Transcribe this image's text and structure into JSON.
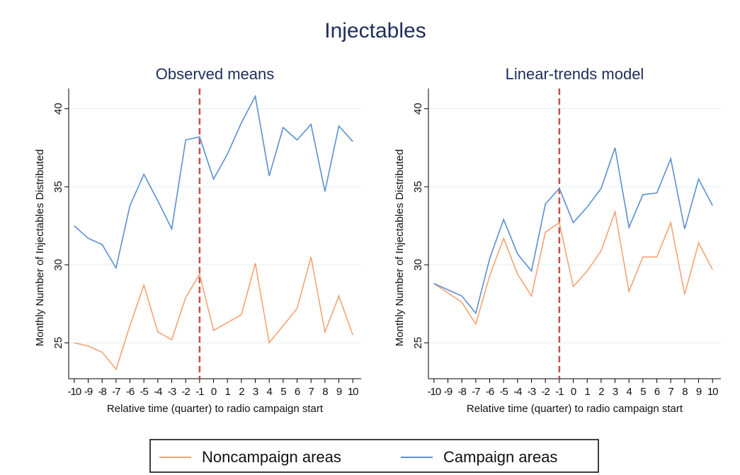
{
  "title": "Injectables",
  "chart_data": [
    {
      "type": "line",
      "title": "Observed means",
      "xlabel": "Relative time (quarter) to radio campaign start",
      "ylabel": "Monthly Number of Injectables Distributed",
      "x": [
        -10,
        -9,
        -8,
        -7,
        -6,
        -5,
        -4,
        -3,
        -2,
        -1,
        0,
        1,
        2,
        3,
        4,
        5,
        6,
        7,
        8,
        9,
        10
      ],
      "series": [
        {
          "name": "Noncampaign areas",
          "color": "#f4a373",
          "values": [
            25.0,
            24.8,
            24.4,
            23.3,
            26.1,
            28.7,
            25.7,
            25.2,
            27.9,
            29.4,
            25.8,
            26.3,
            26.8,
            30.1,
            25.0,
            26.1,
            27.2,
            30.5,
            25.7,
            28.0,
            25.5
          ]
        },
        {
          "name": "Campaign areas",
          "color": "#5b8fd0",
          "values": [
            32.5,
            31.7,
            31.3,
            29.8,
            33.8,
            35.8,
            34.1,
            32.3,
            38.0,
            38.2,
            35.5,
            37.1,
            39.1,
            40.8,
            35.7,
            38.8,
            38.0,
            39.0,
            34.7,
            38.9,
            37.9
          ]
        }
      ],
      "xlim": [
        -10.4,
        10.6
      ],
      "ylim": [
        22.7,
        41.3
      ],
      "xticks": [
        -10,
        -9,
        -8,
        -7,
        -6,
        -5,
        -4,
        -3,
        -2,
        -1,
        0,
        1,
        2,
        3,
        4,
        5,
        6,
        7,
        8,
        9,
        10
      ],
      "yticks": [
        25,
        30,
        35,
        40
      ],
      "grid": true,
      "vline": -1,
      "vline_color": "#c0504d"
    },
    {
      "type": "line",
      "title": "Linear-trends model",
      "xlabel": "Relative time (quarter) to radio campaign start",
      "ylabel": "Monthly Number of Injectables Distributed",
      "x": [
        -10,
        -9,
        -8,
        -7,
        -6,
        -5,
        -4,
        -3,
        -2,
        -1,
        0,
        1,
        2,
        3,
        4,
        5,
        6,
        7,
        8,
        9,
        10
      ],
      "series": [
        {
          "name": "Noncampaign areas",
          "color": "#f4a373",
          "values": [
            28.8,
            28.2,
            27.6,
            26.2,
            29.3,
            31.7,
            29.4,
            28.0,
            32.1,
            32.7,
            28.6,
            29.6,
            30.9,
            33.4,
            28.3,
            30.5,
            30.5,
            32.7,
            28.1,
            31.4,
            29.7
          ]
        },
        {
          "name": "Campaign areas",
          "color": "#5b8fd0",
          "values": [
            28.8,
            28.4,
            28.0,
            26.9,
            30.4,
            32.9,
            30.7,
            29.6,
            33.9,
            34.9,
            32.7,
            33.7,
            34.9,
            37.5,
            32.4,
            34.5,
            34.6,
            36.8,
            32.3,
            35.5,
            33.8
          ]
        }
      ],
      "xlim": [
        -10.4,
        10.6
      ],
      "ylim": [
        22.7,
        41.3
      ],
      "xticks": [
        -10,
        -9,
        -8,
        -7,
        -6,
        -5,
        -4,
        -3,
        -2,
        -1,
        0,
        1,
        2,
        3,
        4,
        5,
        6,
        7,
        8,
        9,
        10
      ],
      "yticks": [
        25,
        30,
        35,
        40
      ],
      "grid": true,
      "vline": -1,
      "vline_color": "#c0504d"
    }
  ]
}
